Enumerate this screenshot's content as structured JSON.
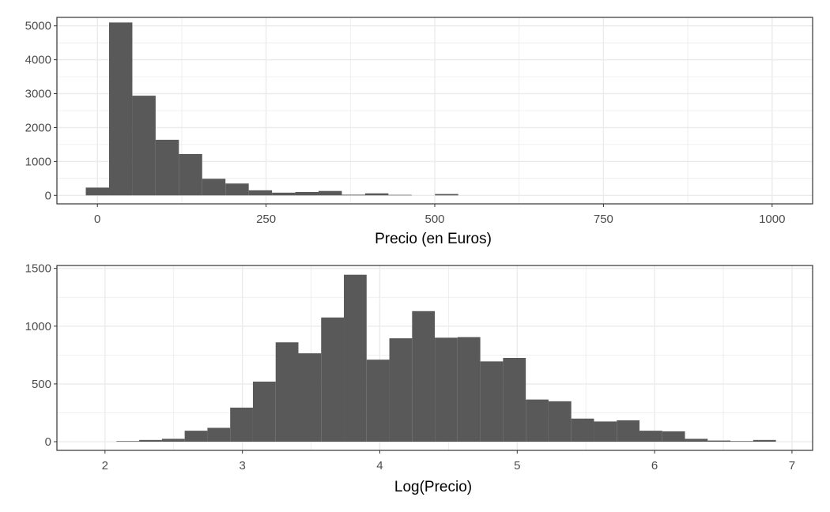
{
  "chart_data": [
    {
      "type": "bar",
      "subtype": "histogram",
      "xlabel": "Precio (en Euros)",
      "ylabel": "",
      "xlim": [
        -60,
        1060
      ],
      "ylim": [
        -250,
        5250
      ],
      "xticks": [
        0,
        250,
        500,
        750,
        1000
      ],
      "xtick_labels": [
        "0",
        "250",
        "500",
        "750",
        "1000"
      ],
      "yticks": [
        0,
        1000,
        2000,
        3000,
        4000,
        5000
      ],
      "ytick_labels": [
        "0",
        "1000",
        "2000",
        "3000",
        "4000",
        "5000"
      ],
      "bin_width": 34.5,
      "bin_starts": [
        -17.2,
        17.3,
        51.8,
        86.3,
        120.8,
        155.3,
        189.8,
        224.3,
        258.8,
        293.3,
        327.8,
        362.3,
        396.8,
        431.3,
        465.8,
        500.3
      ],
      "values": [
        230,
        5100,
        2940,
        1640,
        1220,
        490,
        350,
        150,
        80,
        100,
        130,
        20,
        60,
        15,
        0,
        40
      ],
      "grid": true,
      "bar_color": "#595959"
    },
    {
      "type": "bar",
      "subtype": "histogram",
      "xlabel": "Log(Precio)",
      "ylabel": "",
      "xlim": [
        1.65,
        7.15
      ],
      "ylim": [
        -75,
        1525
      ],
      "xticks": [
        2,
        3,
        4,
        5,
        6,
        7
      ],
      "xtick_labels": [
        "2",
        "3",
        "4",
        "5",
        "6",
        "7"
      ],
      "yticks": [
        0,
        500,
        1000,
        1500
      ],
      "ytick_labels": [
        "0",
        "500",
        "1000",
        "1500"
      ],
      "bin_width": 0.1655,
      "bin_starts": [
        2.0835,
        2.249,
        2.4145,
        2.58,
        2.7455,
        2.911,
        3.0765,
        3.242,
        3.4075,
        3.573,
        3.7385,
        3.904,
        4.0695,
        4.235,
        4.4005,
        4.566,
        4.7315,
        4.897,
        5.0625,
        5.228,
        5.3935,
        5.559,
        5.7245,
        5.89,
        6.0555,
        6.221,
        6.3865,
        6.552,
        6.7175
      ],
      "values": [
        5,
        15,
        25,
        95,
        120,
        295,
        520,
        860,
        765,
        1075,
        1445,
        710,
        895,
        1130,
        900,
        905,
        695,
        725,
        365,
        350,
        200,
        175,
        185,
        95,
        90,
        25,
        10,
        5,
        15
      ],
      "grid": true,
      "bar_color": "#595959"
    }
  ]
}
